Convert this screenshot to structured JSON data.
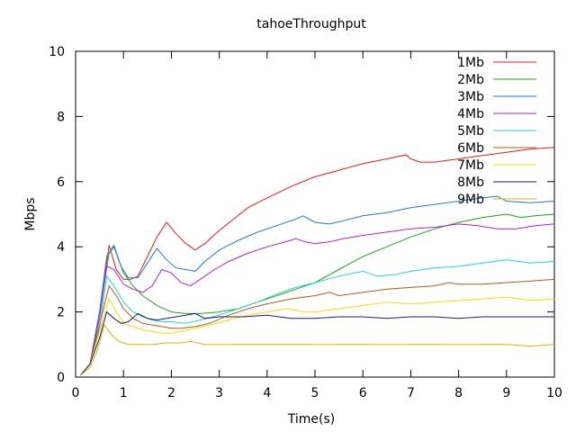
{
  "chart_data": {
    "type": "line",
    "title": "tahoeThroughput",
    "xlabel": "Time(s)",
    "ylabel": "Mbps",
    "xlim": [
      0,
      10
    ],
    "ylim": [
      0,
      10
    ],
    "xticks": [
      "0",
      "1",
      "2",
      "3",
      "4",
      "5",
      "6",
      "7",
      "8",
      "9",
      "10"
    ],
    "yticks": [
      "0",
      "2",
      "4",
      "6",
      "8",
      "10"
    ],
    "grid": false,
    "legend_position": "top-right",
    "series": [
      {
        "name": "1Mb",
        "color": "#e41a1c",
        "x": [
          0.1,
          0.3,
          0.5,
          0.7,
          0.85,
          1.0,
          1.15,
          1.3,
          1.5,
          1.7,
          1.9,
          2.1,
          2.3,
          2.5,
          2.7,
          3.0,
          3.3,
          3.6,
          4.0,
          4.5,
          5.0,
          5.5,
          6.0,
          6.5,
          6.9,
          7.0,
          7.2,
          7.5,
          8.0,
          8.5,
          9.0,
          9.5,
          10.0
        ],
        "y": [
          0.05,
          0.4,
          2.0,
          4.05,
          3.3,
          3.0,
          3.0,
          3.1,
          3.7,
          4.3,
          4.75,
          4.4,
          4.1,
          3.9,
          4.1,
          4.5,
          4.85,
          5.2,
          5.5,
          5.85,
          6.15,
          6.35,
          6.55,
          6.7,
          6.82,
          6.7,
          6.6,
          6.6,
          6.7,
          6.8,
          6.9,
          7.0,
          7.05
        ]
      },
      {
        "name": "2Mb",
        "color": "#1fa31f",
        "x": [
          0.1,
          0.3,
          0.5,
          0.7,
          0.8,
          1.0,
          1.2,
          1.4,
          1.7,
          2.0,
          2.3,
          2.6,
          3.0,
          3.4,
          3.8,
          4.2,
          4.6,
          5.0,
          5.5,
          6.0,
          6.5,
          7.0,
          7.5,
          8.0,
          8.5,
          9.0,
          9.3,
          9.6,
          10.0
        ],
        "y": [
          0.05,
          0.4,
          2.0,
          3.8,
          4.0,
          3.2,
          2.8,
          2.5,
          2.2,
          2.0,
          1.95,
          1.95,
          2.0,
          2.1,
          2.3,
          2.5,
          2.7,
          2.9,
          3.3,
          3.7,
          4.0,
          4.3,
          4.55,
          4.75,
          4.9,
          5.0,
          4.9,
          4.95,
          5.0
        ]
      },
      {
        "name": "3Mb",
        "color": "#1c7bd0",
        "x": [
          0.1,
          0.3,
          0.5,
          0.65,
          0.8,
          0.95,
          1.1,
          1.3,
          1.5,
          1.7,
          1.9,
          2.1,
          2.3,
          2.5,
          2.7,
          3.0,
          3.4,
          3.8,
          4.2,
          4.6,
          4.75,
          5.0,
          5.3,
          5.6,
          6.0,
          6.5,
          7.0,
          7.5,
          8.0,
          8.5,
          8.8,
          9.0,
          9.5,
          10.0
        ],
        "y": [
          0.05,
          0.4,
          2.0,
          3.7,
          4.05,
          3.4,
          3.05,
          3.05,
          3.5,
          3.95,
          3.6,
          3.35,
          3.3,
          3.25,
          3.55,
          3.9,
          4.2,
          4.45,
          4.65,
          4.85,
          4.95,
          4.75,
          4.7,
          4.8,
          4.95,
          5.05,
          5.2,
          5.3,
          5.4,
          5.5,
          5.55,
          5.4,
          5.35,
          5.4
        ]
      },
      {
        "name": "4Mb",
        "color": "#b21fd8",
        "x": [
          0.1,
          0.3,
          0.5,
          0.65,
          0.8,
          1.0,
          1.2,
          1.4,
          1.6,
          1.8,
          2.0,
          2.2,
          2.4,
          2.6,
          2.9,
          3.2,
          3.6,
          4.0,
          4.5,
          4.6,
          4.8,
          5.0,
          5.3,
          5.6,
          6.0,
          6.5,
          7.0,
          7.5,
          8.0,
          8.4,
          8.8,
          9.2,
          9.6,
          10.0
        ],
        "y": [
          0.05,
          0.4,
          1.8,
          3.4,
          3.3,
          2.85,
          2.7,
          2.6,
          2.8,
          3.3,
          3.2,
          2.9,
          2.8,
          3.0,
          3.3,
          3.55,
          3.8,
          4.0,
          4.2,
          4.25,
          4.15,
          4.1,
          4.15,
          4.25,
          4.35,
          4.45,
          4.55,
          4.6,
          4.7,
          4.65,
          4.55,
          4.55,
          4.65,
          4.7
        ]
      },
      {
        "name": "5Mb",
        "color": "#1fd4d4",
        "x": [
          0.1,
          0.3,
          0.5,
          0.65,
          0.8,
          1.0,
          1.2,
          1.4,
          1.6,
          1.8,
          2.0,
          2.3,
          2.6,
          3.0,
          3.4,
          3.8,
          4.2,
          4.6,
          5.0,
          5.5,
          6.0,
          6.3,
          6.7,
          7.0,
          7.5,
          8.0,
          8.5,
          9.0,
          9.5,
          10.0
        ],
        "y": [
          0.05,
          0.4,
          1.5,
          3.1,
          2.8,
          2.3,
          2.0,
          1.85,
          1.75,
          1.7,
          1.7,
          1.65,
          1.75,
          1.9,
          2.1,
          2.3,
          2.55,
          2.75,
          2.9,
          3.1,
          3.25,
          3.1,
          3.15,
          3.25,
          3.35,
          3.4,
          3.5,
          3.6,
          3.5,
          3.55
        ]
      },
      {
        "name": "6Mb",
        "color": "#b25a18",
        "x": [
          0.1,
          0.3,
          0.5,
          0.7,
          0.85,
          1.0,
          1.2,
          1.4,
          1.6,
          1.8,
          2.0,
          2.2,
          2.5,
          2.8,
          3.2,
          3.6,
          4.0,
          4.5,
          5.0,
          5.3,
          5.5,
          6.0,
          6.5,
          7.0,
          7.5,
          7.8,
          8.0,
          8.5,
          9.0,
          9.5,
          10.0
        ],
        "y": [
          0.05,
          0.4,
          1.6,
          2.8,
          2.5,
          2.1,
          1.8,
          1.65,
          1.6,
          1.55,
          1.5,
          1.5,
          1.55,
          1.65,
          1.9,
          2.1,
          2.25,
          2.4,
          2.5,
          2.6,
          2.5,
          2.6,
          2.7,
          2.75,
          2.8,
          2.9,
          2.85,
          2.85,
          2.9,
          2.95,
          3.0
        ]
      },
      {
        "name": "7Mb",
        "color": "#f0e000",
        "x": [
          0.1,
          0.3,
          0.5,
          0.7,
          0.85,
          1.0,
          1.2,
          1.4,
          1.6,
          1.8,
          2.0,
          2.2,
          2.5,
          2.8,
          3.2,
          3.6,
          4.0,
          4.4,
          4.8,
          5.0,
          5.5,
          6.0,
          6.5,
          7.0,
          7.5,
          8.0,
          8.5,
          9.0,
          9.5,
          10.0
        ],
        "y": [
          0.05,
          0.4,
          1.4,
          2.4,
          2.0,
          1.65,
          1.55,
          1.45,
          1.4,
          1.35,
          1.35,
          1.4,
          1.5,
          1.6,
          1.75,
          1.9,
          2.0,
          2.1,
          2.0,
          2.0,
          2.1,
          2.2,
          2.3,
          2.25,
          2.3,
          2.35,
          2.4,
          2.45,
          2.35,
          2.4
        ]
      },
      {
        "name": "8Mb",
        "color": "#1a1a80",
        "x": [
          0.1,
          0.3,
          0.5,
          0.65,
          0.8,
          0.95,
          1.1,
          1.3,
          1.5,
          1.7,
          1.9,
          2.1,
          2.3,
          2.5,
          2.7,
          3.0,
          3.5,
          4.0,
          4.5,
          5.0,
          5.5,
          6.0,
          6.5,
          7.0,
          7.5,
          8.0,
          8.5,
          9.0,
          9.5,
          10.0
        ],
        "y": [
          0.05,
          0.4,
          1.2,
          2.0,
          1.8,
          1.65,
          1.7,
          1.95,
          1.8,
          1.75,
          1.8,
          1.85,
          1.9,
          1.95,
          1.8,
          1.85,
          1.85,
          1.9,
          1.8,
          1.8,
          1.85,
          1.85,
          1.8,
          1.85,
          1.85,
          1.8,
          1.85,
          1.85,
          1.85,
          1.85
        ]
      },
      {
        "name": "9Mb",
        "color": "#e0b000",
        "x": [
          0.1,
          0.3,
          0.45,
          0.6,
          0.75,
          0.9,
          1.1,
          1.3,
          1.6,
          1.9,
          2.2,
          2.4,
          2.7,
          3.0,
          3.5,
          4.0,
          4.5,
          5.0,
          5.5,
          6.0,
          6.5,
          7.0,
          7.5,
          8.0,
          8.5,
          9.0,
          9.5,
          10.0
        ],
        "y": [
          0.05,
          0.3,
          0.8,
          1.6,
          1.3,
          1.1,
          1.0,
          1.0,
          1.0,
          1.05,
          1.05,
          1.1,
          1.0,
          1.0,
          1.0,
          1.0,
          1.0,
          1.0,
          1.0,
          1.0,
          1.0,
          1.0,
          1.0,
          1.0,
          1.0,
          1.0,
          0.95,
          1.0
        ]
      }
    ]
  }
}
